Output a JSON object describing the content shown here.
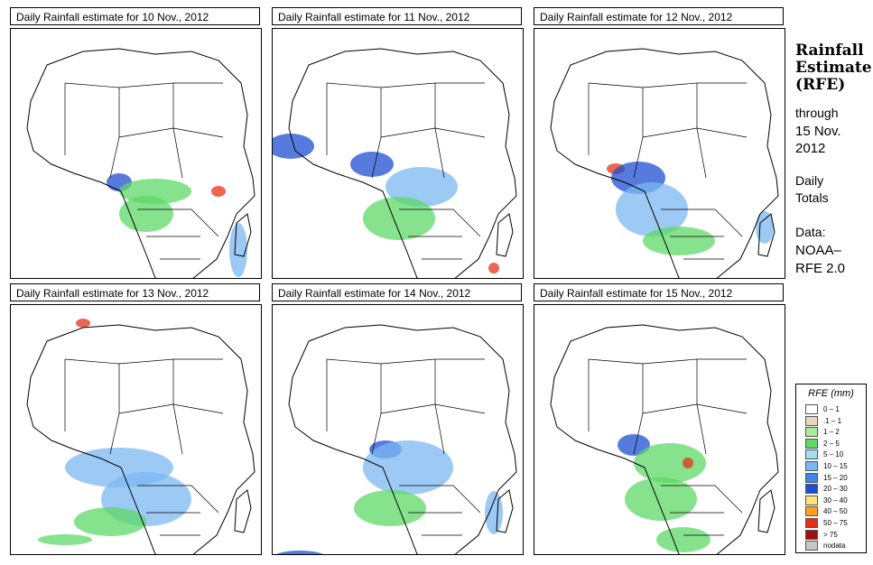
{
  "panels": [
    {
      "title": "Daily Rainfall estimate for  10 Nov., 2012",
      "spots": [
        [
          "blue",
          120,
          170,
          14,
          10
        ],
        [
          "green",
          160,
          180,
          40,
          14
        ],
        [
          "red",
          230,
          180,
          8,
          6
        ],
        [
          "green",
          150,
          205,
          30,
          20
        ],
        [
          "lightblue",
          252,
          245,
          10,
          30
        ]
      ]
    },
    {
      "title": "Daily Rainfall estimate for  11 Nov., 2012",
      "spots": [
        [
          "blue",
          20,
          130,
          26,
          14
        ],
        [
          "blue",
          110,
          150,
          24,
          14
        ],
        [
          "lightblue",
          165,
          175,
          40,
          22
        ],
        [
          "green",
          140,
          210,
          40,
          24
        ],
        [
          "red",
          245,
          265,
          6,
          6
        ]
      ]
    },
    {
      "title": "Daily Rainfall estimate for  12 Nov., 2012",
      "spots": [
        [
          "red",
          90,
          155,
          10,
          6
        ],
        [
          "blue",
          115,
          165,
          30,
          18
        ],
        [
          "lightblue",
          130,
          200,
          40,
          30
        ],
        [
          "green",
          160,
          235,
          40,
          16
        ],
        [
          "lightblue",
          255,
          220,
          10,
          18
        ]
      ]
    },
    {
      "title": "Daily Rainfall estimate for  13 Nov., 2012",
      "spots": [
        [
          "lightblue",
          120,
          180,
          60,
          22
        ],
        [
          "lightblue",
          150,
          215,
          50,
          30
        ],
        [
          "green",
          110,
          240,
          40,
          16
        ],
        [
          "red",
          80,
          20,
          8,
          5
        ],
        [
          "green",
          60,
          260,
          30,
          6
        ]
      ]
    },
    {
      "title": "Daily Rainfall estimate for  14 Nov., 2012",
      "spots": [
        [
          "blue",
          125,
          160,
          18,
          10
        ],
        [
          "lightblue",
          150,
          180,
          50,
          30
        ],
        [
          "green",
          130,
          225,
          40,
          20
        ],
        [
          "lightblue",
          245,
          230,
          10,
          24
        ],
        [
          "blue",
          30,
          280,
          30,
          8
        ]
      ]
    },
    {
      "title": "Daily Rainfall estimate for  15 Nov., 2012",
      "spots": [
        [
          "blue",
          110,
          155,
          18,
          12
        ],
        [
          "green",
          150,
          175,
          40,
          22
        ],
        [
          "red",
          170,
          175,
          6,
          6
        ],
        [
          "green",
          140,
          215,
          40,
          24
        ],
        [
          "green",
          165,
          260,
          30,
          14
        ]
      ]
    }
  ],
  "sidebar": {
    "title_line1": "Rainfall",
    "title_line2": "Estimate",
    "title_line3": "(RFE)",
    "through": "through",
    "date_line1": "15 Nov.",
    "date_line2": "2012",
    "daily": "Daily",
    "totals": "Totals",
    "data_label": "Data:",
    "source_line1": "NOAA–",
    "source_line2": "RFE 2.0"
  },
  "legend": {
    "title": "RFE (mm)",
    "items": [
      {
        "label": "0 – 1",
        "color": "#ffffff"
      },
      {
        "label": ".1 – 1",
        "color": "#e8d7c0"
      },
      {
        "label": "1 – 2",
        "color": "#a6ee9a"
      },
      {
        "label": "2 – 5",
        "color": "#5ed866"
      },
      {
        "label": "5 – 10",
        "color": "#9ee0f0"
      },
      {
        "label": "10 – 15",
        "color": "#7bb8f2"
      },
      {
        "label": "15 – 20",
        "color": "#3f84ea"
      },
      {
        "label": "20 – 30",
        "color": "#1f4fd0"
      },
      {
        "label": "30 – 40",
        "color": "#ffe27a"
      },
      {
        "label": "40 – 50",
        "color": "#ffa020"
      },
      {
        "label": "50 – 75",
        "color": "#e53018"
      },
      {
        "label": "> 75",
        "color": "#a01010"
      },
      {
        "label": "nodata",
        "color": "#c8c8c8"
      }
    ]
  },
  "colors": {
    "green": "#5ed866",
    "lightgreen": "#a6ee9a",
    "lightblue": "#7bb8f2",
    "blue": "#1f4fd0",
    "red": "#e53018",
    "tan": "#e8d7c0"
  }
}
